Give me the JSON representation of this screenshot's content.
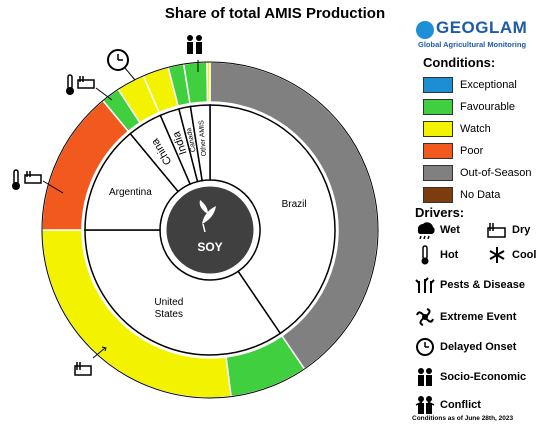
{
  "title": "Share of total AMIS Production",
  "logo": {
    "name": "GEOGLAM",
    "subtitle": "Global Agricultural Monitoring"
  },
  "center_label": "SOY",
  "conditions": {
    "title": "Conditions:",
    "items": [
      {
        "label": "Exceptional",
        "color": "#1b8fd1"
      },
      {
        "label": "Favourable",
        "color": "#3fcf3f"
      },
      {
        "label": "Watch",
        "color": "#f3f300"
      },
      {
        "label": "Poor",
        "color": "#f2591f"
      },
      {
        "label": "Out-of-Season",
        "color": "#808080"
      },
      {
        "label": "No Data",
        "color": "#7d3c0d"
      }
    ]
  },
  "drivers": {
    "title": "Drivers:",
    "items": [
      {
        "label": "Wet",
        "icon": "wet-icon"
      },
      {
        "label": "Dry",
        "icon": "dry-icon"
      },
      {
        "label": "Hot",
        "icon": "hot-icon"
      },
      {
        "label": "Cool",
        "icon": "cool-icon"
      },
      {
        "label": "Pests & Disease",
        "icon": "pests-disease-icon"
      },
      {
        "label": "Extreme Event",
        "icon": "extreme-event-icon"
      },
      {
        "label": "Delayed Onset",
        "icon": "delayed-onset-icon"
      },
      {
        "label": "Socio-Economic",
        "icon": "socio-economic-icon"
      },
      {
        "label": "Conflict",
        "icon": "conflict-icon"
      }
    ]
  },
  "footnote": "Conditions as of June 28th, 2023",
  "chart_data": {
    "type": "pie",
    "title": "Share of total AMIS Production",
    "countries": [
      {
        "name": "Brazil",
        "share": 40.5
      },
      {
        "name": "United States",
        "share": 34.5
      },
      {
        "name": "Argentina",
        "share": 14.0
      },
      {
        "name": "China",
        "share": 4.5
      },
      {
        "name": "India",
        "share": 2.5
      },
      {
        "name": "Canada",
        "share": 1.5
      },
      {
        "name": "Other AMIS",
        "share": 2.5
      }
    ],
    "conditions_ring": [
      {
        "country": "Brazil",
        "condition": "Out-of-Season",
        "share": 40.5
      },
      {
        "country": "United States",
        "condition": "Favourable",
        "share": 7.5
      },
      {
        "country": "United States",
        "condition": "Watch",
        "share": 27.0
      },
      {
        "country": "Argentina",
        "condition": "Poor",
        "share": 14.0
      },
      {
        "country": "China",
        "condition": "Favourable",
        "share": 1.8
      },
      {
        "country": "China",
        "condition": "Watch",
        "share": 2.7
      },
      {
        "country": "India",
        "condition": "Watch",
        "share": 2.5
      },
      {
        "country": "Canada",
        "condition": "Favourable",
        "share": 1.5
      },
      {
        "country": "Other AMIS",
        "condition": "Favourable",
        "share": 2.2
      },
      {
        "country": "Other AMIS",
        "condition": "Watch",
        "share": 0.3
      }
    ],
    "annotations": [
      {
        "segment": "United States Watch",
        "drivers": [
          "Dry"
        ]
      },
      {
        "segment": "Argentina Poor",
        "drivers": [
          "Hot",
          "Dry"
        ]
      },
      {
        "segment": "China Watch",
        "drivers": [
          "Hot",
          "Dry"
        ]
      },
      {
        "segment": "India Watch",
        "drivers": [
          "Delayed Onset"
        ]
      },
      {
        "segment": "Other AMIS",
        "drivers": [
          "Conflict"
        ]
      }
    ]
  }
}
